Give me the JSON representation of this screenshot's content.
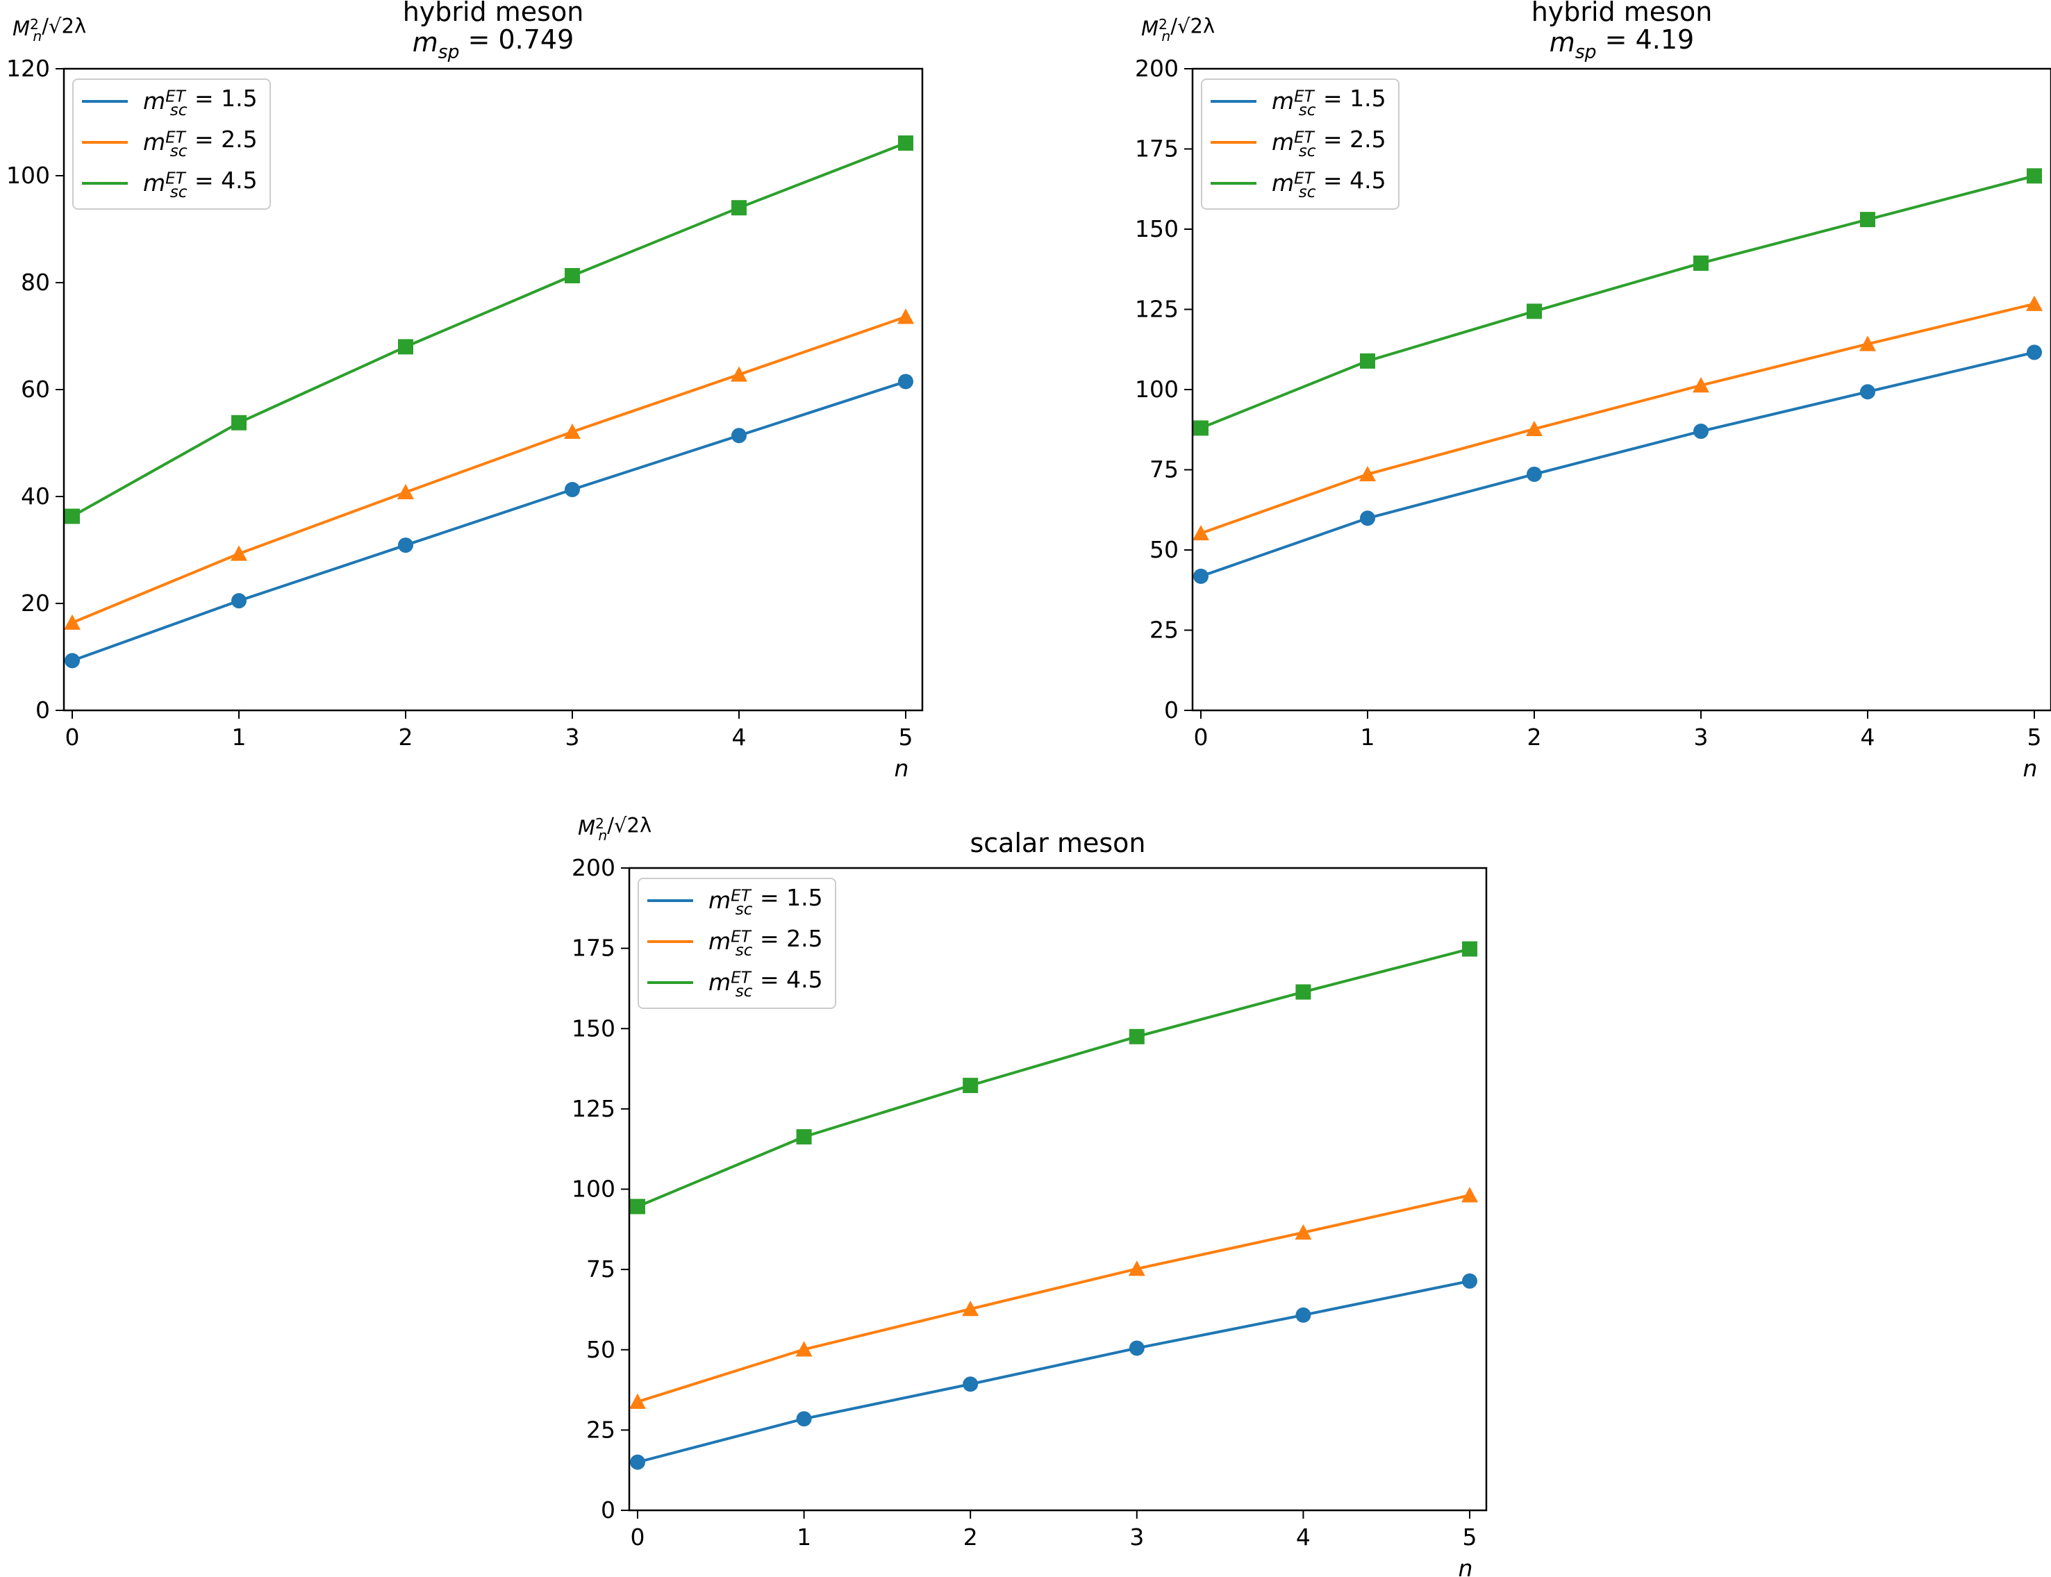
{
  "chart_data": [
    {
      "type": "line",
      "title_lines": [
        "hybrid meson",
        "m_sp = 0.749"
      ],
      "title_main": "hybrid meson",
      "title_sub": {
        "var": "m",
        "sub": "sp",
        "eq": " = 0.749"
      },
      "ylabel": {
        "base": "M",
        "sub": "n",
        "sup": "2",
        "rest": "/√2λ"
      },
      "xlabel": "n",
      "x": [
        0,
        1,
        2,
        3,
        4,
        5
      ],
      "xticks": [
        "0",
        "1",
        "2",
        "3",
        "4",
        "5"
      ],
      "yticks": [
        "0",
        "20",
        "40",
        "60",
        "80",
        "100",
        "120"
      ],
      "ytick_values": [
        0,
        20,
        40,
        60,
        80,
        100,
        120
      ],
      "ylim": [
        0,
        120
      ],
      "xlim": [
        -0.05,
        5.1
      ],
      "grid": false,
      "legend_position": "top-left",
      "series": [
        {
          "name": "m_sc^ET = 1.5",
          "legend": {
            "var": "m",
            "sub": "sc",
            "sup": "ET",
            "eq": " = 1.5"
          },
          "color": "#1f77b4",
          "marker": "circle",
          "values": [
            9.3,
            20.5,
            30.9,
            41.3,
            51.4,
            61.5
          ]
        },
        {
          "name": "m_sc^ET = 2.5",
          "legend": {
            "var": "m",
            "sub": "sc",
            "sup": "ET",
            "eq": " = 2.5"
          },
          "color": "#ff7f0e",
          "marker": "triangle",
          "values": [
            16.4,
            29.3,
            40.8,
            52.1,
            62.8,
            73.6
          ]
        },
        {
          "name": "m_sc^ET = 4.5",
          "legend": {
            "var": "m",
            "sub": "sc",
            "sup": "ET",
            "eq": " = 4.5"
          },
          "color": "#2ca02c",
          "marker": "square",
          "values": [
            36.3,
            53.8,
            68.0,
            81.3,
            94.0,
            106.1
          ]
        }
      ]
    },
    {
      "type": "line",
      "title_lines": [
        "hybrid meson",
        "m_sp = 4.19"
      ],
      "title_main": "hybrid meson",
      "title_sub": {
        "var": "m",
        "sub": "sp",
        "eq": " = 4.19"
      },
      "ylabel": {
        "base": "M",
        "sub": "n",
        "sup": "2",
        "rest": "/√2λ"
      },
      "xlabel": "n",
      "x": [
        0,
        1,
        2,
        3,
        4,
        5
      ],
      "xticks": [
        "0",
        "1",
        "2",
        "3",
        "4",
        "5"
      ],
      "yticks": [
        "0",
        "25",
        "50",
        "75",
        "100",
        "125",
        "150",
        "175",
        "200"
      ],
      "ytick_values": [
        0,
        25,
        50,
        75,
        100,
        125,
        150,
        175,
        200
      ],
      "ylim": [
        0,
        200
      ],
      "xlim": [
        -0.05,
        5.1
      ],
      "grid": false,
      "legend_position": "top-left",
      "series": [
        {
          "name": "m_sc^ET = 1.5",
          "legend": {
            "var": "m",
            "sub": "sc",
            "sup": "ET",
            "eq": " = 1.5"
          },
          "color": "#1f77b4",
          "marker": "circle",
          "values": [
            41.8,
            59.9,
            73.6,
            87.0,
            99.3,
            111.6
          ]
        },
        {
          "name": "m_sc^ET = 2.5",
          "legend": {
            "var": "m",
            "sub": "sc",
            "sup": "ET",
            "eq": " = 2.5"
          },
          "color": "#ff7f0e",
          "marker": "triangle",
          "values": [
            55.2,
            73.6,
            87.7,
            101.3,
            114.2,
            126.7
          ]
        },
        {
          "name": "m_sc^ET = 4.5",
          "legend": {
            "var": "m",
            "sub": "sc",
            "sup": "ET",
            "eq": " = 4.5"
          },
          "color": "#2ca02c",
          "marker": "square",
          "values": [
            88.0,
            108.9,
            124.4,
            139.4,
            153.0,
            166.6
          ]
        }
      ]
    },
    {
      "type": "line",
      "title_lines": [
        "scalar meson"
      ],
      "title_main": "scalar meson",
      "title_sub": null,
      "ylabel": {
        "base": "M",
        "sub": "n",
        "sup": "2",
        "rest": "/√2λ"
      },
      "xlabel": "n",
      "x": [
        0,
        1,
        2,
        3,
        4,
        5
      ],
      "xticks": [
        "0",
        "1",
        "2",
        "3",
        "4",
        "5"
      ],
      "yticks": [
        "0",
        "25",
        "50",
        "75",
        "100",
        "125",
        "150",
        "175",
        "200"
      ],
      "ytick_values": [
        0,
        25,
        50,
        75,
        100,
        125,
        150,
        175,
        200
      ],
      "ylim": [
        0,
        200
      ],
      "xlim": [
        -0.05,
        5.1
      ],
      "grid": false,
      "legend_position": "top-left",
      "series": [
        {
          "name": "m_sc^ET = 1.5",
          "legend": {
            "var": "m",
            "sub": "sc",
            "sup": "ET",
            "eq": " = 1.5"
          },
          "color": "#1f77b4",
          "marker": "circle",
          "values": [
            15.0,
            28.5,
            39.3,
            50.5,
            60.8,
            71.4
          ]
        },
        {
          "name": "m_sc^ET = 2.5",
          "legend": {
            "var": "m",
            "sub": "sc",
            "sup": "ET",
            "eq": " = 2.5"
          },
          "color": "#ff7f0e",
          "marker": "triangle",
          "values": [
            33.8,
            50.1,
            62.7,
            75.2,
            86.5,
            98.1
          ]
        },
        {
          "name": "m_sc^ET = 4.5",
          "legend": {
            "var": "m",
            "sub": "sc",
            "sup": "ET",
            "eq": " = 4.5"
          },
          "color": "#2ca02c",
          "marker": "square",
          "values": [
            94.6,
            116.3,
            132.3,
            147.5,
            161.4,
            174.8
          ]
        }
      ]
    }
  ]
}
